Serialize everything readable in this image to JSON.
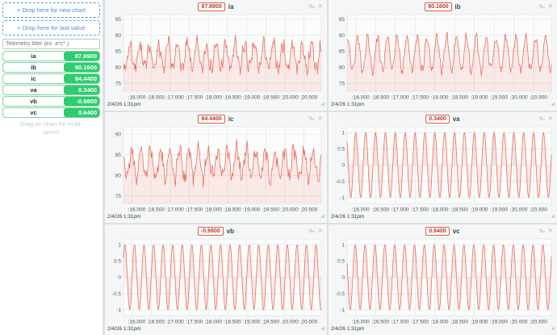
{
  "sidebar": {
    "drop_new_chart_label": "+ Drop here for new chart",
    "drop_last_value_label": "+ Drop here for last value",
    "filter_placeholder": "Telemetry filter (ex: a*c* )",
    "hint": "Drag on chart for multi-series",
    "badge_color": "#2ecc71",
    "items": [
      {
        "name": "ia",
        "value": "87.8900"
      },
      {
        "name": "ib",
        "value": "80.1600"
      },
      {
        "name": "ic",
        "value": "84.4400"
      },
      {
        "name": "va",
        "value": "0.3400"
      },
      {
        "name": "vb",
        "value": "-0.9800"
      },
      {
        "name": "vc",
        "value": "0.6400"
      }
    ]
  },
  "icons": {
    "sparkline": "‰",
    "close": "✕",
    "resize": "◢"
  },
  "chart_defaults": {
    "timestamp": "2/4/26 1:31pm",
    "x_range": [
      15.78,
      20.95
    ],
    "x_ticks": [
      {
        "value": 16.0,
        "label": ":16.000"
      },
      {
        "value": 16.5,
        "label": ":16.500"
      },
      {
        "value": 17.0,
        "label": ":17.000"
      },
      {
        "value": 17.5,
        "label": ":17.500"
      },
      {
        "value": 18.0,
        "label": ":18.000"
      },
      {
        "value": 18.5,
        "label": ":18.500"
      },
      {
        "value": 19.0,
        "label": ":19.000"
      },
      {
        "value": 19.5,
        "label": ":19.500"
      },
      {
        "value": 20.0,
        "label": ":20.000"
      },
      {
        "value": 20.5,
        "label": ":20.500"
      }
    ],
    "line_color": "#ec6e5e",
    "fill_color": "rgba(236,110,94,0.13)",
    "grid_color": "#e3e5e5",
    "plot_bg": "#fbfcfc",
    "grid": true,
    "legend_position": "none"
  },
  "chart_data": [
    {
      "type": "line",
      "title": "ia",
      "last_value": "87.8900",
      "ylabel": "",
      "xlabel": "",
      "y_ticks": [
        75,
        80,
        85,
        90,
        95
      ],
      "y_range": [
        72.5,
        96.5
      ],
      "waveform": {
        "kind": "noisy-sine",
        "base": 83.4,
        "amplitude": 3.8,
        "harmonic": 1.1,
        "noise": 1.9,
        "frequency": 4,
        "phase": 2.83,
        "seed": 7,
        "points": 320
      }
    },
    {
      "type": "line",
      "title": "ib",
      "last_value": "80.1600",
      "ylabel": "",
      "xlabel": "",
      "y_ticks": [
        75,
        80,
        85,
        90,
        95
      ],
      "y_range": [
        72.5,
        96.5
      ],
      "waveform": {
        "kind": "noisy-sine",
        "base": 84.3,
        "amplitude": 5.3,
        "harmonic": 0.8,
        "noise": 1.2,
        "frequency": 4,
        "phase": 0.36,
        "seed": 13,
        "points": 320
      }
    },
    {
      "type": "line",
      "title": "ic",
      "last_value": "84.4400",
      "ylabel": "",
      "xlabel": "",
      "y_ticks": [
        75,
        80,
        85,
        90
      ],
      "y_range": [
        73.2,
        91.8
      ],
      "waveform": {
        "kind": "noisy-sine",
        "base": 82.9,
        "amplitude": 3.4,
        "harmonic": 1.0,
        "noise": 1.7,
        "frequency": 4,
        "phase": 1.72,
        "seed": 21,
        "points": 320
      }
    },
    {
      "type": "line",
      "title": "va",
      "last_value": "0.3400",
      "ylabel": "",
      "xlabel": "",
      "y_ticks": [
        -1,
        -0.5,
        0,
        0.5,
        1
      ],
      "y_range": [
        -1.18,
        1.18
      ],
      "waveform": {
        "kind": "sine",
        "base": 0,
        "amplitude": 1,
        "harmonic": 0,
        "noise": 0,
        "frequency": 4,
        "phase": 1.6,
        "seed": 1,
        "points": 520
      }
    },
    {
      "type": "line",
      "title": "vb",
      "last_value": "-0.9800",
      "ylabel": "",
      "xlabel": "",
      "y_ticks": [
        -1,
        -0.5,
        0,
        0.5,
        1
      ],
      "y_range": [
        -1.18,
        1.18
      ],
      "waveform": {
        "kind": "sine",
        "base": 0,
        "amplitude": 1,
        "harmonic": 0,
        "noise": 0,
        "frequency": 4,
        "phase": 6.17,
        "seed": 1,
        "points": 520
      }
    },
    {
      "type": "line",
      "title": "vc",
      "last_value": "0.6400",
      "ylabel": "",
      "xlabel": "",
      "y_ticks": [
        -1,
        -0.5,
        0,
        0.5,
        1
      ],
      "y_range": [
        -1.18,
        1.18
      ],
      "waveform": {
        "kind": "sine",
        "base": 0,
        "amplitude": 1,
        "harmonic": 0,
        "noise": 0,
        "frequency": 4,
        "phase": 1.95,
        "seed": 1,
        "points": 520
      }
    }
  ]
}
